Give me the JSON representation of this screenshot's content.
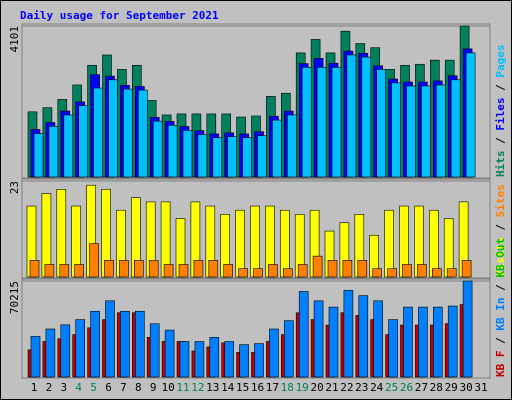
{
  "title": "Daily usage for September 2021",
  "categories": [
    "1",
    "2",
    "3",
    "4",
    "5",
    "6",
    "7",
    "8",
    "9",
    "10",
    "11",
    "12",
    "13",
    "14",
    "15",
    "16",
    "17",
    "18",
    "19",
    "20",
    "21",
    "22",
    "23",
    "24",
    "25",
    "26",
    "27",
    "28",
    "29",
    "30",
    "31"
  ],
  "weekday_color": "#000000",
  "weekend_color": "#00805c",
  "weekend_indices": [
    3,
    4,
    10,
    11,
    17,
    18,
    24,
    25
  ],
  "chart_data": [
    {
      "type": "bar",
      "ylim": [
        0,
        4101
      ],
      "yticks": [
        4101
      ],
      "series": [
        {
          "name": "Hits",
          "color": "#00805c",
          "values": [
            1770,
            1882,
            2107,
            2500,
            3034,
            3314,
            2921,
            3034,
            2079,
            1685,
            1713,
            1713,
            1713,
            1713,
            1629,
            1657,
            2191,
            2275,
            3371,
            3736,
            3371,
            3961,
            3624,
            3511,
            2921,
            3034,
            3062,
            3174,
            3174,
            4101,
            null
          ]
        },
        {
          "name": "Files",
          "color": "#0000ff",
          "values": [
            1290,
            1480,
            1790,
            2040,
            2780,
            2740,
            2490,
            2460,
            1620,
            1510,
            1370,
            1260,
            1170,
            1200,
            1170,
            1230,
            1650,
            1790,
            3080,
            3220,
            3090,
            3420,
            3360,
            3020,
            2660,
            2580,
            2580,
            2610,
            2750,
            3480,
            null
          ]
        },
        {
          "name": "Pages",
          "color": "#00c0ff",
          "values": [
            1180,
            1376,
            1685,
            1938,
            2416,
            2640,
            2388,
            2360,
            1517,
            1404,
            1264,
            1152,
            1067,
            1096,
            1067,
            1124,
            1545,
            1685,
            2978,
            2978,
            2978,
            3315,
            3258,
            2921,
            2556,
            2472,
            2472,
            2500,
            2640,
            3371,
            null
          ]
        }
      ]
    },
    {
      "type": "bar",
      "ylim": [
        0,
        23
      ],
      "yticks": [
        23
      ],
      "series": [
        {
          "name": "Visits",
          "color": "#ffff00",
          "values": [
            17,
            20,
            21,
            17,
            22,
            21,
            16,
            19,
            18,
            18,
            14,
            18,
            17,
            15,
            16,
            17,
            17,
            16,
            15,
            16,
            11,
            13,
            15,
            10,
            16,
            17,
            17,
            16,
            14,
            18,
            null
          ]
        },
        {
          "name": "Sites",
          "color": "#ff8000",
          "values": [
            4,
            3,
            3,
            3,
            8,
            4,
            4,
            4,
            4,
            3,
            3,
            4,
            4,
            3,
            2,
            2,
            3,
            2,
            3,
            5,
            4,
            4,
            4,
            2,
            2,
            3,
            3,
            2,
            2,
            4,
            null
          ]
        }
      ]
    },
    {
      "type": "bar",
      "ylim": [
        0,
        70215
      ],
      "yticks": [
        70215
      ],
      "series": [
        {
          "name": "KB F",
          "color": "#c00000",
          "values": [
            19843,
            26000,
            28000,
            31000,
            36000,
            42000,
            47000,
            47000,
            29000,
            26000,
            26000,
            19000,
            22000,
            25000,
            18000,
            18000,
            26000,
            31000,
            47000,
            42000,
            38000,
            47000,
            45000,
            42000,
            31000,
            38000,
            38000,
            38000,
            39000,
            53000,
            null
          ]
        },
        {
          "name": "KB In",
          "color": "#0080ff",
          "values": [
            29765,
            35107,
            38160,
            41976,
            48082,
            55714,
            48082,
            48082,
            38923,
            34344,
            25949,
            25949,
            29002,
            25949,
            23659,
            24422,
            35107,
            41213,
            62582,
            55714,
            51134,
            63346,
            59530,
            55714,
            41976,
            51134,
            51134,
            51134,
            51898,
            70215,
            null
          ]
        },
        {
          "name": "KB Out",
          "color": "#00c000",
          "values": [
            null,
            null,
            null,
            null,
            null,
            null,
            null,
            null,
            null,
            null,
            null,
            null,
            null,
            null,
            null,
            null,
            null,
            null,
            null,
            null,
            null,
            null,
            null,
            null,
            null,
            null,
            null,
            null,
            null,
            null,
            null
          ]
        }
      ]
    }
  ]
}
